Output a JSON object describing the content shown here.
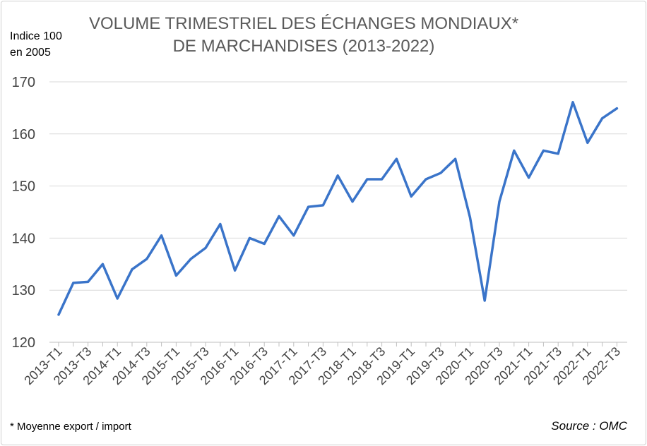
{
  "title_line1": "VOLUME TRIMESTRIEL DES ÉCHANGES MONDIAUX*",
  "title_line2": "DE MARCHANDISES (2013-2022)",
  "ylabel_line1": "Indice 100",
  "ylabel_line2": "en 2005",
  "footnote": "* Moyenne export / import",
  "source": "Source : OMC",
  "colors": {
    "line": "#3a74c9",
    "grid": "#d9d9d9",
    "axis": "#bfbfbf"
  },
  "chart_data": {
    "type": "line",
    "ylim": [
      120,
      170
    ],
    "yticks": [
      120,
      130,
      140,
      150,
      160,
      170
    ],
    "grid": true,
    "xtick_labels": [
      "2013-T1",
      "2013-T3",
      "2014-T1",
      "2014-T3",
      "2015-T1",
      "2015-T3",
      "2016-T1",
      "2016-T3",
      "2017-T1",
      "2017-T3",
      "2018-T1",
      "2018-T3",
      "2019-T1",
      "2019-T3",
      "2020-T1",
      "2020-T3",
      "2021-T1",
      "2021-T3",
      "2022-T1",
      "2022-T3"
    ],
    "x": [
      "2013-T1",
      "2013-T2",
      "2013-T3",
      "2013-T4",
      "2014-T1",
      "2014-T2",
      "2014-T3",
      "2014-T4",
      "2015-T1",
      "2015-T2",
      "2015-T3",
      "2015-T4",
      "2016-T1",
      "2016-T2",
      "2016-T3",
      "2016-T4",
      "2017-T1",
      "2017-T2",
      "2017-T3",
      "2017-T4",
      "2018-T1",
      "2018-T2",
      "2018-T3",
      "2018-T4",
      "2019-T1",
      "2019-T2",
      "2019-T3",
      "2019-T4",
      "2020-T1",
      "2020-T2",
      "2020-T3",
      "2020-T4",
      "2021-T1",
      "2021-T2",
      "2021-T3",
      "2021-T4",
      "2022-T1",
      "2022-T2",
      "2022-T3"
    ],
    "series": [
      {
        "values": [
          125.3,
          131.4,
          131.6,
          135.0,
          128.4,
          134.0,
          136.0,
          140.5,
          132.8,
          136.0,
          138.1,
          142.7,
          133.8,
          140.0,
          138.9,
          144.2,
          140.5,
          146.0,
          146.3,
          152.0,
          147.0,
          151.3,
          151.3,
          155.2,
          148.0,
          151.3,
          152.5,
          155.2,
          144.0,
          128.0,
          147.0,
          156.8,
          151.6,
          156.8,
          156.2,
          166.1,
          158.3,
          163.0,
          164.9
        ]
      }
    ]
  }
}
